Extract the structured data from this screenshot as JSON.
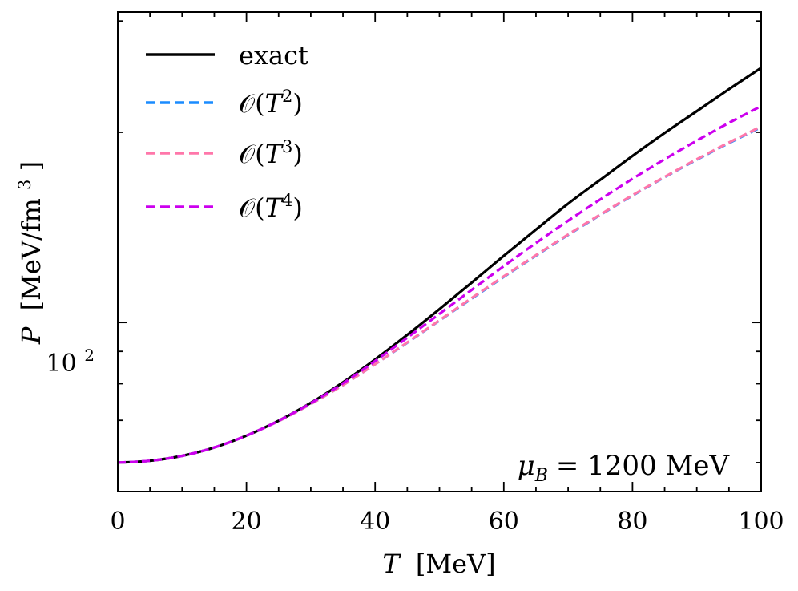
{
  "chart_data": {
    "type": "line",
    "title": "",
    "xlabel": {
      "symbol": "T",
      "unit": "[MeV]"
    },
    "ylabel": {
      "symbol": "P",
      "unit": "[MeV/fm",
      "unit_sup": "3",
      "unit_end": "]"
    },
    "xscale": "linear",
    "yscale": "log",
    "xlim": [
      0,
      100
    ],
    "ylim": [
      54,
      310
    ],
    "xticks": [
      0,
      20,
      40,
      60,
      80,
      100
    ],
    "xtick_labels": [
      "0",
      "20",
      "40",
      "60",
      "80",
      "100"
    ],
    "yticks_labeled": [
      100
    ],
    "ytick_labels": [
      {
        "base": "10",
        "exp": "2"
      }
    ],
    "legend_position": "upper-left",
    "annotation": {
      "symbol": "μ",
      "sub": "B",
      "text": "= 1200 MeV",
      "position": "lower-right"
    },
    "x": [
      0,
      5,
      10,
      15,
      20,
      25,
      30,
      35,
      40,
      45,
      50,
      55,
      60,
      65,
      70,
      75,
      80,
      85,
      90,
      95,
      100
    ],
    "series": [
      {
        "name": "exact",
        "label_text": "exact",
        "color": "#000000",
        "dash": "solid",
        "values": [
          60.0,
          60.4,
          61.5,
          63.4,
          66.2,
          69.9,
          74.6,
          80.4,
          87.4,
          95.6,
          105.0,
          115.6,
          127.5,
          140.3,
          154.2,
          168.2,
          183.5,
          199.5,
          216.0,
          234.0,
          253.0
        ]
      },
      {
        "name": "O(T^2)",
        "label_main": "𝒪(",
        "label_var": "T",
        "label_sup": "2",
        "label_close": ")",
        "color": "#1a8cff",
        "dash": "dashed",
        "values": [
          60.0,
          60.4,
          61.5,
          63.4,
          66.2,
          69.8,
          74.3,
          79.6,
          85.9,
          92.9,
          100.7,
          109.1,
          118.1,
          127.6,
          137.6,
          148.0,
          158.8,
          169.8,
          181.0,
          192.3,
          203.8
        ]
      },
      {
        "name": "O(T^3)",
        "label_main": "𝒪(",
        "label_var": "T",
        "label_sup": "3",
        "label_close": ")",
        "color": "#ff77aa",
        "dash": "dashed",
        "values": [
          60.0,
          60.4,
          61.5,
          63.4,
          66.2,
          69.8,
          74.3,
          79.6,
          85.9,
          93.0,
          100.8,
          109.3,
          118.3,
          127.8,
          137.8,
          148.2,
          159.0,
          170.0,
          181.3,
          192.7,
          204.3
        ]
      },
      {
        "name": "O(T^4)",
        "label_main": "𝒪(",
        "label_var": "T",
        "label_sup": "4",
        "label_close": ")",
        "color": "#cc00ee",
        "dash": "dashed",
        "values": [
          60.0,
          60.4,
          61.5,
          63.4,
          66.2,
          69.9,
          74.5,
          80.1,
          86.9,
          94.6,
          103.2,
          112.6,
          122.8,
          133.6,
          144.9,
          156.6,
          168.8,
          181.3,
          194.0,
          207.0,
          220.0
        ]
      }
    ]
  }
}
